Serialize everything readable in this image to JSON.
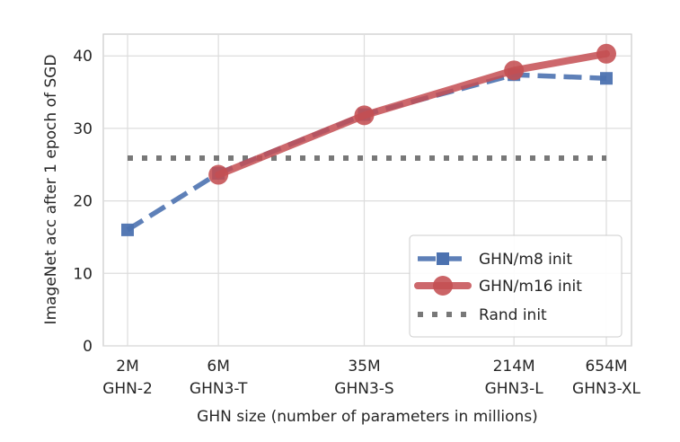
{
  "chart_data": {
    "type": "line",
    "title": "",
    "xlabel": "GHN size (number of parameters in millions)",
    "ylabel": "ImageNet acc after 1 epoch of SGD",
    "x_scale": "log",
    "x_values": [
      2,
      6,
      35,
      214,
      654
    ],
    "x_tick_labels": [
      {
        "line1": "2M",
        "line2": "GHN-2"
      },
      {
        "line1": "6M",
        "line2": "GHN3-T"
      },
      {
        "line1": "35M",
        "line2": "GHN3-S"
      },
      {
        "line1": "214M",
        "line2": "GHN3-L"
      },
      {
        "line1": "654M",
        "line2": "GHN3-XL"
      }
    ],
    "ylim": [
      0,
      43
    ],
    "y_ticks": [
      0,
      10,
      20,
      30,
      40
    ],
    "y_tick_labels": [
      "0",
      "10",
      "20",
      "30",
      "40"
    ],
    "grid": true,
    "legend_position": "bottom-right",
    "series": [
      {
        "name": "GHN/m8 init",
        "x": [
          2,
          6,
          35,
          214,
          654
        ],
        "values": [
          16.0,
          23.8,
          31.9,
          37.4,
          36.9
        ],
        "color": "#4c72b0",
        "style": "dashed",
        "marker": "square"
      },
      {
        "name": "GHN/m16 init",
        "x": [
          6,
          35,
          214,
          654
        ],
        "values": [
          23.6,
          31.8,
          38.0,
          40.3
        ],
        "color": "#c44e52",
        "style": "solid",
        "marker": "circle"
      },
      {
        "name": "Rand init",
        "x": [
          2,
          654
        ],
        "values": [
          25.9,
          25.9
        ],
        "color": "#696969",
        "style": "dotted",
        "marker": "none"
      }
    ]
  }
}
